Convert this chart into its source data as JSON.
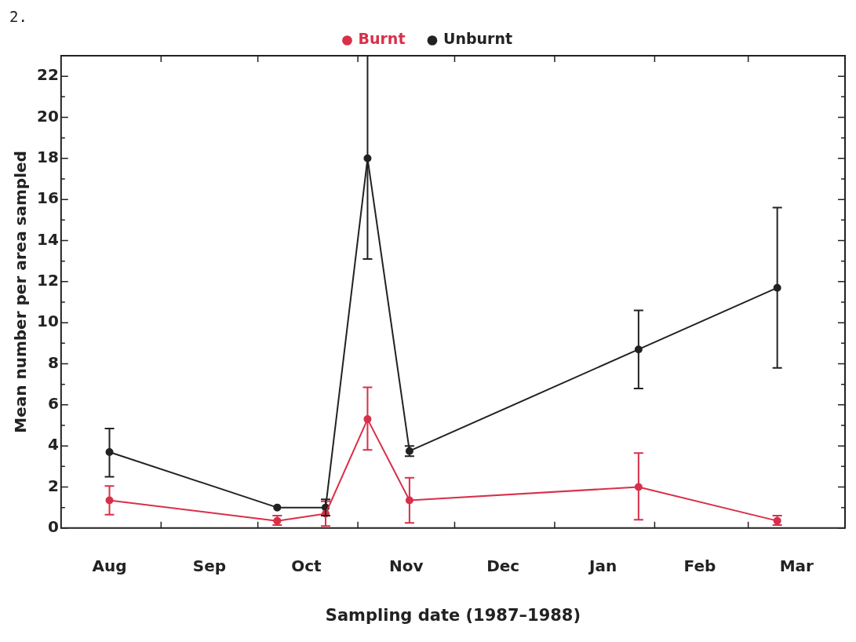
{
  "chart_data": {
    "type": "line",
    "xlabel": "Sampling date (1987–1988)",
    "ylabel": "Mean number per area sampled",
    "annotations": [
      "2."
    ],
    "x": [
      "1987-08-16",
      "1987-10-07",
      "1987-10-22",
      "1987-11-04",
      "1987-11-17",
      "1988-01-27",
      "1988-03-10"
    ],
    "series": [
      {
        "name": "Burnt",
        "color": "#d8304a",
        "values": [
          1.35,
          0.35,
          0.7,
          5.3,
          1.35,
          2.0,
          0.35
        ],
        "errors": [
          [
            0.65,
            2.05
          ],
          [
            0.15,
            0.6
          ],
          [
            0.1,
            1.3
          ],
          [
            3.8,
            6.85
          ],
          [
            0.25,
            2.45
          ],
          [
            0.4,
            3.65
          ],
          [
            0.15,
            0.6
          ]
        ]
      },
      {
        "name": "Unburnt",
        "color": "#222222",
        "values": [
          3.7,
          1.0,
          1.0,
          18.0,
          3.75,
          8.7,
          11.7
        ],
        "errors": [
          [
            2.5,
            4.85
          ],
          null,
          [
            0.6,
            1.4
          ],
          [
            13.1,
            23
          ],
          [
            3.5,
            4.0
          ],
          [
            6.8,
            10.6
          ],
          [
            7.8,
            15.6
          ]
        ]
      }
    ],
    "xlim": [
      "1987-08-01",
      "1988-03-31"
    ],
    "xticks": [
      {
        "value": "1987-08-16",
        "label": "Aug"
      },
      {
        "value": "1987-09-01",
        "label": null
      },
      {
        "value": "1987-09-16",
        "label": "Sep"
      },
      {
        "value": "1987-10-01",
        "label": null
      },
      {
        "value": "1987-10-16",
        "label": "Oct"
      },
      {
        "value": "1987-11-01",
        "label": null
      },
      {
        "value": "1987-11-16",
        "label": "Nov"
      },
      {
        "value": "1987-12-01",
        "label": null
      },
      {
        "value": "1987-12-16",
        "label": "Dec"
      },
      {
        "value": "1988-01-01",
        "label": null
      },
      {
        "value": "1988-01-16",
        "label": "Jan"
      },
      {
        "value": "1988-02-01",
        "label": null
      },
      {
        "value": "1988-02-15",
        "label": "Feb"
      },
      {
        "value": "1988-03-01",
        "label": null
      },
      {
        "value": "1988-03-16",
        "label": "Mar"
      }
    ],
    "ylim": [
      0,
      23
    ],
    "yticks": [
      0,
      {
        "value": 1,
        "label": null
      },
      2,
      {
        "value": 3,
        "label": null
      },
      4,
      {
        "value": 5,
        "label": null
      },
      6,
      {
        "value": 7,
        "label": null
      },
      8,
      {
        "value": 9,
        "label": null
      },
      10,
      {
        "value": 11,
        "label": null
      },
      12,
      {
        "value": 13,
        "label": null
      },
      14,
      {
        "value": 15,
        "label": null
      },
      16,
      {
        "value": 17,
        "label": null
      },
      18,
      {
        "value": 19,
        "label": null
      },
      20,
      {
        "value": 21,
        "label": null
      },
      22
    ],
    "marker": "circle",
    "line_style": "solid",
    "legend": "top",
    "grid": false
  }
}
